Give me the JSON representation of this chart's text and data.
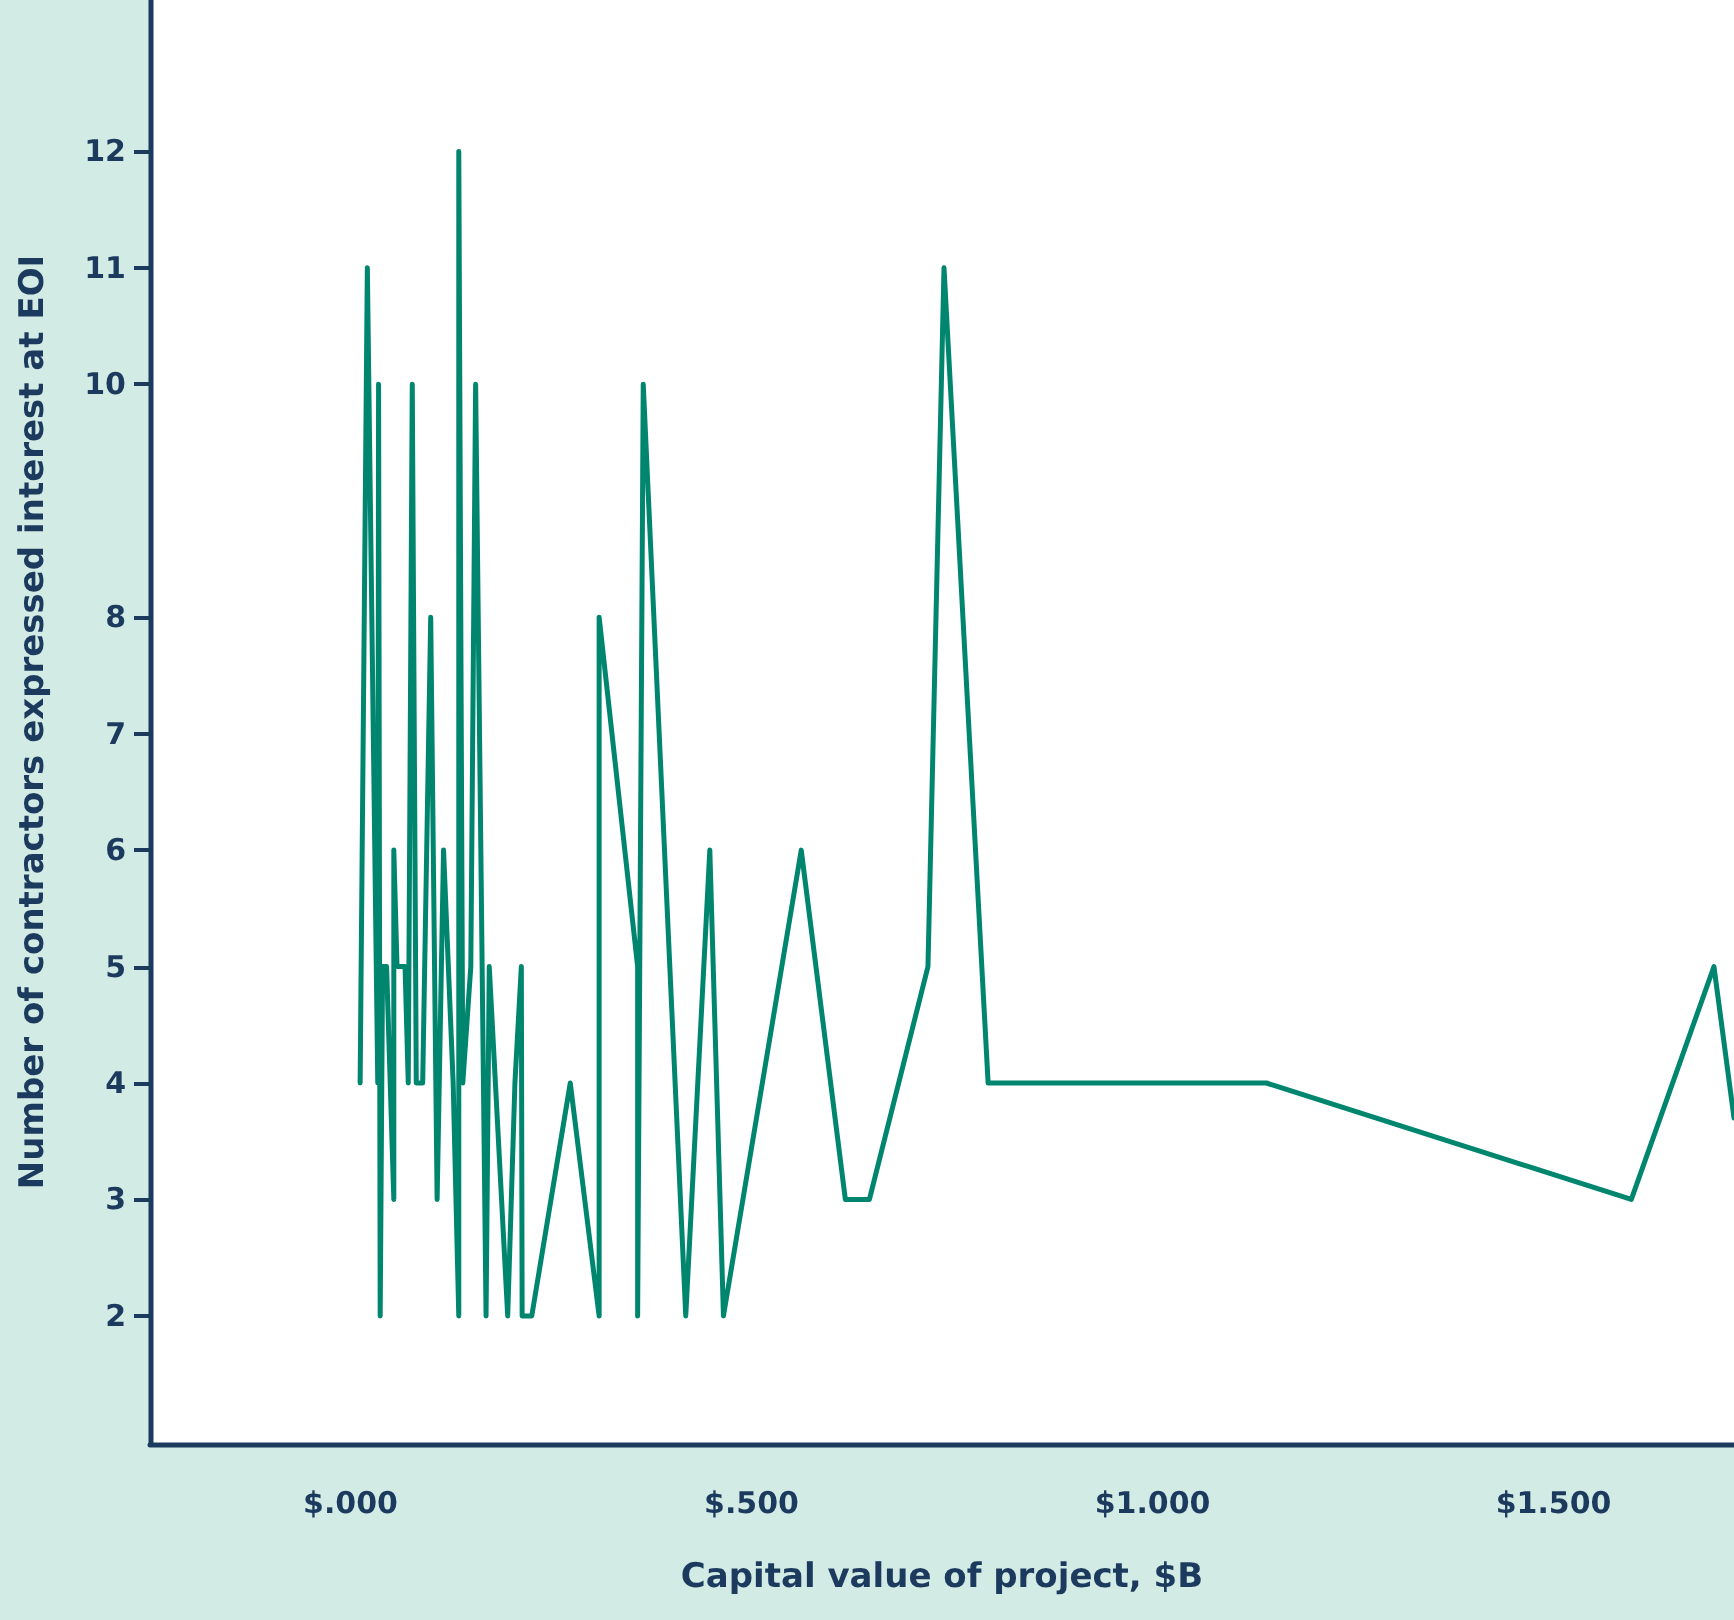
{
  "chart_data": {
    "type": "line",
    "xlabel": "Capital value of project, $B",
    "ylabel": "Number of contractors expressed interest at EOI",
    "xlim": [
      -0.25,
      1.725
    ],
    "ylim": [
      0.9,
      13.3
    ],
    "xticks": [
      {
        "value": 0,
        "label": "$.000"
      },
      {
        "value": 0.5,
        "label": "$.500"
      },
      {
        "value": 1,
        "label": "$1.000"
      },
      {
        "value": 1.5,
        "label": "$1.500"
      }
    ],
    "yticks": [
      2,
      3,
      4,
      5,
      6,
      7,
      8,
      10,
      11,
      12
    ],
    "grid": false,
    "marker": "none",
    "line_style": "solid",
    "series": [
      {
        "color": "#00866f",
        "x": [
          0.012,
          0.021,
          0.034,
          0.035,
          0.037,
          0.04,
          0.045,
          0.054,
          0.054,
          0.058,
          0.068,
          0.072,
          0.077,
          0.082,
          0.09,
          0.1,
          0.108,
          0.116,
          0.128,
          0.135,
          0.135,
          0.14,
          0.15,
          0.156,
          0.169,
          0.173,
          0.196,
          0.205,
          0.213,
          0.214,
          0.226,
          0.274,
          0.31,
          0.31,
          0.358,
          0.358,
          0.365,
          0.418,
          0.448,
          0.465,
          0.562,
          0.617,
          0.647,
          0.72,
          0.74,
          0.795,
          1.142,
          1.597,
          1.7,
          1.725
        ],
        "values": [
          4,
          11,
          4,
          10,
          2,
          5,
          5,
          3,
          6,
          5,
          5,
          4,
          10,
          4,
          4,
          8,
          3,
          6,
          4,
          2,
          12,
          4,
          5,
          10,
          2,
          5,
          2,
          4,
          5,
          2,
          2,
          4,
          2,
          8,
          5,
          2,
          10,
          2,
          6,
          2,
          6,
          3,
          3,
          5,
          11,
          4,
          4,
          3,
          5,
          3.7
        ]
      }
    ]
  }
}
